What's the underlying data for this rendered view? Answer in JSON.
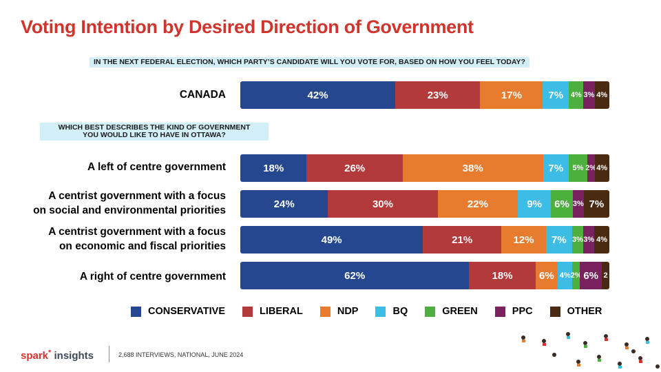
{
  "title": "Voting Intention by Desired Direction of Government",
  "question1": "IN THE NEXT FEDERAL ELECTION, WHICH PARTY’S CANDIDATE WILL YOU VOTE FOR, BASED ON HOW YOU FEEL TODAY?",
  "question2_line1": "WHICH BEST DESCRIBES THE KIND OF GOVERNMENT",
  "question2_line2": "YOU WOULD LIKE TO HAVE IN OTTAWA?",
  "source": "2,688 INTERVIEWS, NATIONAL, JUNE 2024",
  "logo": {
    "spark": "spark",
    "insights": "insights"
  },
  "chart_data": {
    "type": "bar",
    "orientation": "horizontal-stacked",
    "categories": [
      {
        "line1": "CANADA",
        "line2": ""
      },
      {
        "line1": "A left of centre government",
        "line2": ""
      },
      {
        "line1": "A centrist government with a focus",
        "line2": "on social and environmental priorities"
      },
      {
        "line1": "A centrist government with a focus",
        "line2": "on economic and fiscal priorities"
      },
      {
        "line1": "A right of centre government",
        "line2": ""
      }
    ],
    "series": [
      {
        "name": "CONSERVATIVE",
        "color": "#24478f",
        "values": [
          42,
          18,
          24,
          49,
          62
        ],
        "labels": [
          "42%",
          "18%",
          "24%",
          "49%",
          "62%"
        ]
      },
      {
        "name": "LIBERAL",
        "color": "#b23a3a",
        "values": [
          23,
          26,
          30,
          21,
          18
        ],
        "labels": [
          "23%",
          "26%",
          "30%",
          "21%",
          "18%"
        ]
      },
      {
        "name": "NDP",
        "color": "#e87c2e",
        "values": [
          17,
          38,
          22,
          12,
          6
        ],
        "labels": [
          "17%",
          "38%",
          "22%",
          "12%",
          "6%"
        ]
      },
      {
        "name": "BQ",
        "color": "#3cbde6",
        "values": [
          7,
          7,
          9,
          7,
          4
        ],
        "labels": [
          "7%",
          "7%",
          "9%",
          "7%",
          "4%"
        ]
      },
      {
        "name": "GREEN",
        "color": "#4caf3e",
        "values": [
          4,
          5,
          6,
          3,
          2
        ],
        "labels": [
          "4%",
          "5%",
          "6%",
          "3%",
          "2%"
        ]
      },
      {
        "name": "PPC",
        "color": "#7a2160",
        "values": [
          3,
          2,
          3,
          3,
          6
        ],
        "labels": [
          "3%",
          "2%",
          "3%",
          "3%",
          "6%"
        ]
      },
      {
        "name": "OTHER",
        "color": "#4a2a10",
        "values": [
          4,
          4,
          7,
          4,
          2
        ],
        "labels": [
          "4%",
          "4%",
          "7%",
          "4%",
          "2"
        ]
      }
    ],
    "xlim": [
      0,
      100
    ],
    "legend_position": "bottom"
  }
}
